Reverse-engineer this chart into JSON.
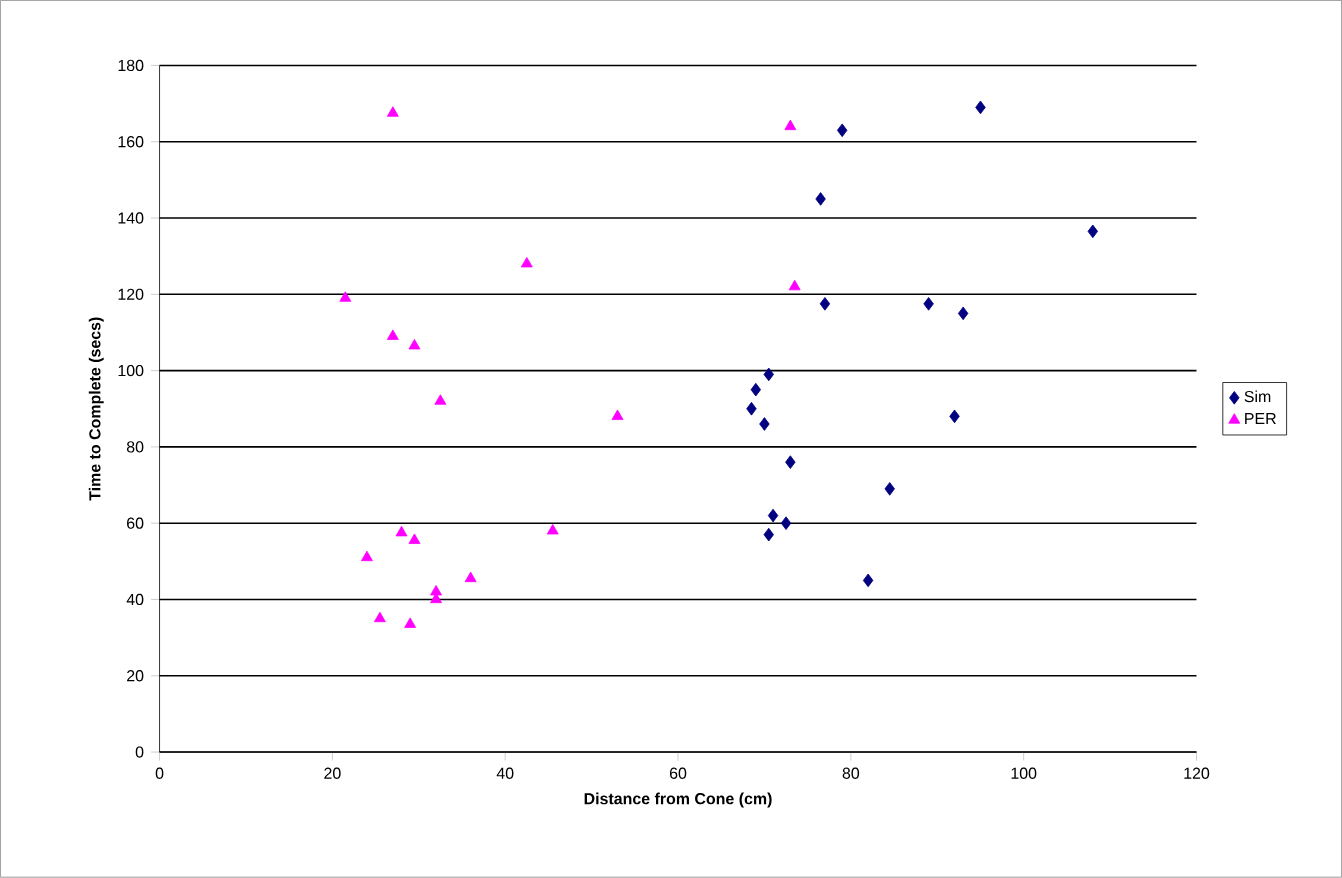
{
  "chart_data": {
    "type": "scatter",
    "xlabel": "Distance from Cone (cm)",
    "ylabel": "Time to Complete (secs)",
    "xlim": [
      0,
      120
    ],
    "xticks": [
      0,
      20,
      40,
      60,
      80,
      100,
      120
    ],
    "ylim": [
      0,
      180
    ],
    "yticks": [
      0,
      20,
      40,
      60,
      80,
      100,
      120,
      140,
      160,
      180
    ],
    "grid": "y",
    "legend": "right",
    "series": [
      {
        "name": "Sim",
        "color": "#000080",
        "marker": "diamond",
        "x": [
          95,
          79,
          76.5,
          108,
          77,
          89,
          93,
          70.5,
          69,
          68.5,
          70,
          92,
          73,
          84.5,
          71,
          72.5,
          70.5,
          82
        ],
        "values": [
          169,
          163,
          145,
          136.5,
          117.5,
          117.5,
          115,
          99,
          95,
          90,
          86,
          88,
          76,
          69,
          62,
          60,
          57,
          45
        ]
      },
      {
        "name": "PER",
        "color": "#ff00ff",
        "marker": "triangle",
        "x": [
          27,
          73,
          42.5,
          73.5,
          21.5,
          27,
          29.5,
          32.5,
          53,
          24,
          28,
          29.5,
          45.5,
          36,
          32,
          32,
          25.5,
          29
        ],
        "values": [
          167.5,
          164,
          128,
          122,
          119,
          109,
          106.5,
          92,
          88,
          51,
          57.5,
          55.5,
          58,
          45.5,
          42,
          40,
          35,
          33.5
        ]
      }
    ]
  }
}
